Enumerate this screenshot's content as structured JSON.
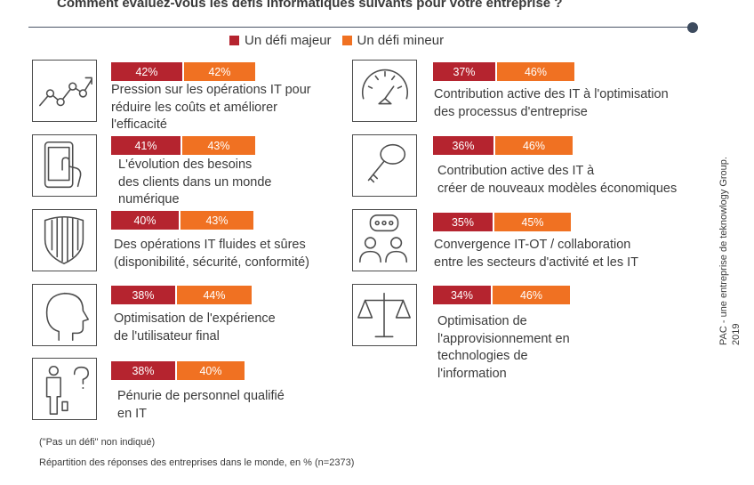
{
  "title": "Comment évaluez-vous les défis informatiques suivants pour votre entreprise ?",
  "legend": [
    {
      "label": "Un défi majeur",
      "color": "#b5242f"
    },
    {
      "label": "Un défi mineur",
      "color": "#f07122"
    }
  ],
  "chart_data": {
    "type": "bar",
    "stacked": true,
    "categories": [
      [
        "Pression sur les opérations IT pour",
        "réduire les coûts et améliorer",
        "l'efficacité"
      ],
      [
        "L'évolution des besoins",
        "des clients dans un monde",
        "numérique"
      ],
      [
        "Des opérations IT fluides et sûres",
        "(disponibilité, sécurité, conformité)"
      ],
      [
        "Optimisation de l'expérience",
        "de l'utilisateur final"
      ],
      [
        "Pénurie de personnel qualifié",
        "en IT"
      ],
      [
        "Contribution active des IT à l'optimisation",
        "des processus d'entreprise"
      ],
      [
        "Contribution active des IT à",
        "créer de nouveaux modèles économiques"
      ],
      [
        "Convergence IT-OT / collaboration",
        "entre les secteurs d'activité et les IT"
      ],
      [
        "Optimisation de",
        "l'approvisionnement en",
        "technologies de",
        "l'information"
      ]
    ],
    "series": [
      {
        "name": "Un défi majeur",
        "values": [
          42,
          41,
          40,
          38,
          38,
          37,
          36,
          35,
          34
        ],
        "labels": [
          "42%",
          "41%",
          "40%",
          "38%",
          "38%",
          "37%",
          "36%",
          "35%",
          "34%"
        ]
      },
      {
        "name": "Un défi mineur",
        "values": [
          42,
          43,
          43,
          44,
          40,
          46,
          46,
          45,
          46
        ],
        "labels": [
          "42%",
          "43%",
          "43%",
          "44%",
          "40%",
          "46%",
          "46%",
          "45%",
          "46%"
        ]
      }
    ],
    "icons": [
      "growth-chart-icon",
      "tablet-touch-icon",
      "shield-icon",
      "user-profile-icon",
      "person-question-icon",
      "gauge-icon",
      "key-icon",
      "chat-people-icon",
      "scales-icon"
    ],
    "unit": "%"
  },
  "notes": {
    "not_shown": "(\"Pas un défi\" non indiqué)",
    "source": "Répartition des réponses des entreprises dans le monde, en % (n=2373)"
  },
  "credit": [
    "PAC - une entreprise de teknowlogy Group.",
    "2019"
  ]
}
